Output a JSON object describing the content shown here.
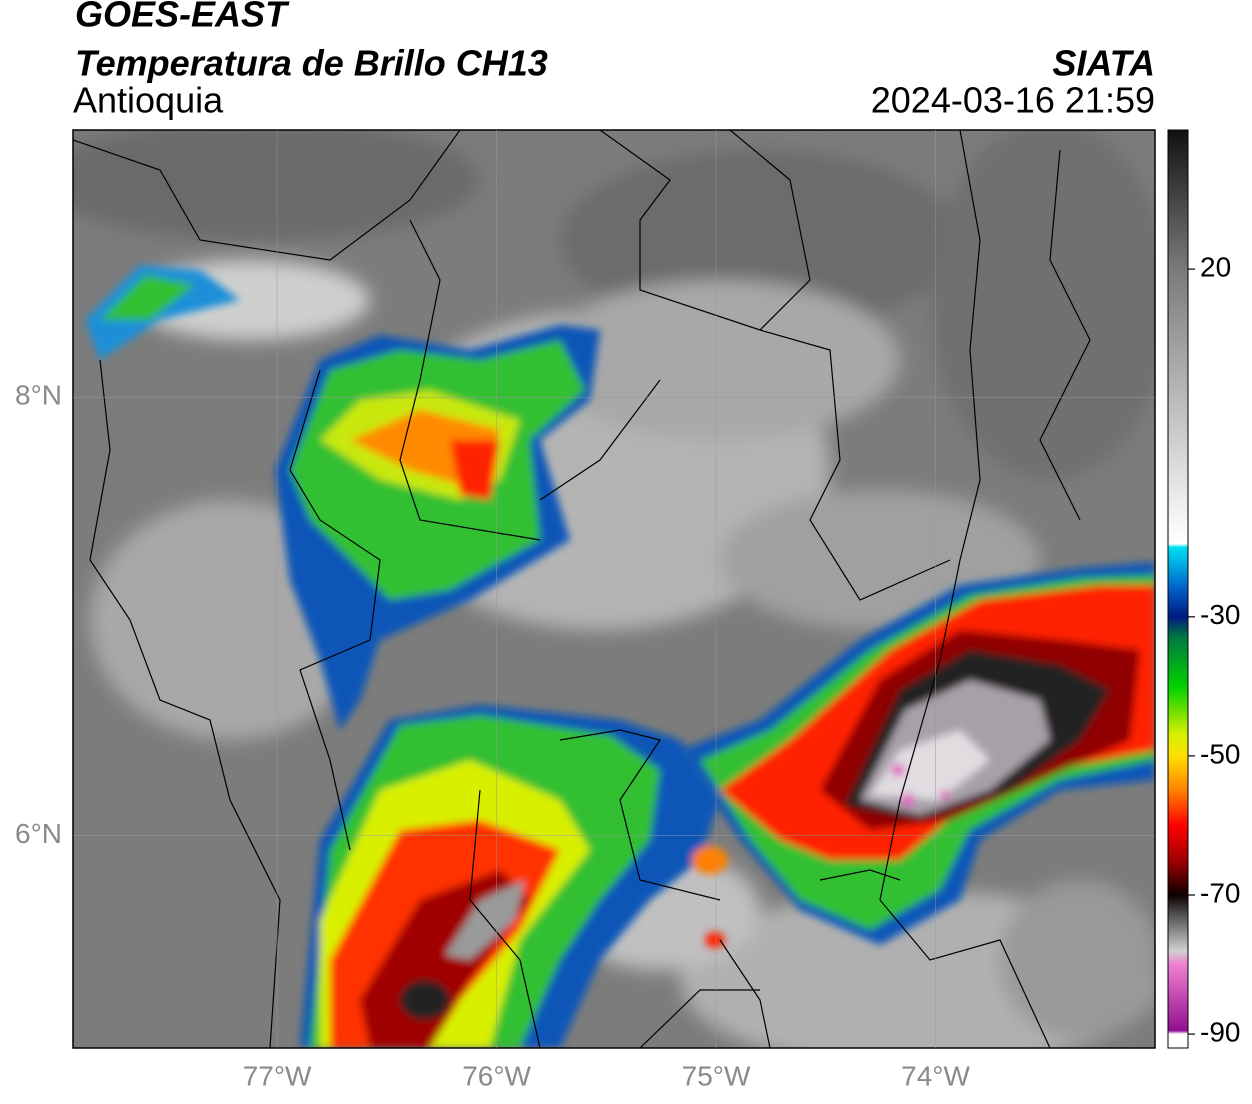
{
  "header": {
    "satellite": "GOES-EAST",
    "product": "Temperatura de Brillo CH13",
    "region": "Antioquia",
    "source": "SIATA",
    "timestamp": "2024-03-16 21:59"
  },
  "map": {
    "lonlim": [
      -77.93,
      -73.0
    ],
    "latlim": [
      5.03,
      9.22
    ],
    "grid": true,
    "lonticks": [
      {
        "value": -77,
        "label": "77°W"
      },
      {
        "value": -76,
        "label": "76°W"
      },
      {
        "value": -75,
        "label": "75°W"
      },
      {
        "value": -74,
        "label": "74°W"
      }
    ],
    "latticks": [
      {
        "value": 8,
        "label": "8°N"
      },
      {
        "value": 6,
        "label": "6°N"
      }
    ]
  },
  "colorbar": {
    "lim": [
      -92,
      40
    ],
    "ticks": [
      20,
      -30,
      -50,
      -70,
      -90
    ],
    "stops": [
      [
        40,
        "#111111"
      ],
      [
        20,
        "#7a7a7a"
      ],
      [
        -15,
        "#f2f2f2"
      ],
      [
        -19.5,
        "#ffffff"
      ],
      [
        -20,
        "#00e0f5"
      ],
      [
        -26,
        "#0060c8"
      ],
      [
        -30,
        "#001a80"
      ],
      [
        -33,
        "#007a40"
      ],
      [
        -40,
        "#00d000"
      ],
      [
        -47,
        "#d8f000"
      ],
      [
        -50,
        "#ffe000"
      ],
      [
        -55,
        "#ff8000"
      ],
      [
        -60,
        "#ff0000"
      ],
      [
        -65,
        "#a00000"
      ],
      [
        -70,
        "#100000"
      ],
      [
        -73,
        "#555555"
      ],
      [
        -78,
        "#d0d0d0"
      ],
      [
        -80,
        "#f080d0"
      ],
      [
        -89.5,
        "#901090"
      ],
      [
        -90,
        "#ffffff"
      ],
      [
        -92,
        "#ffffff"
      ]
    ]
  }
}
